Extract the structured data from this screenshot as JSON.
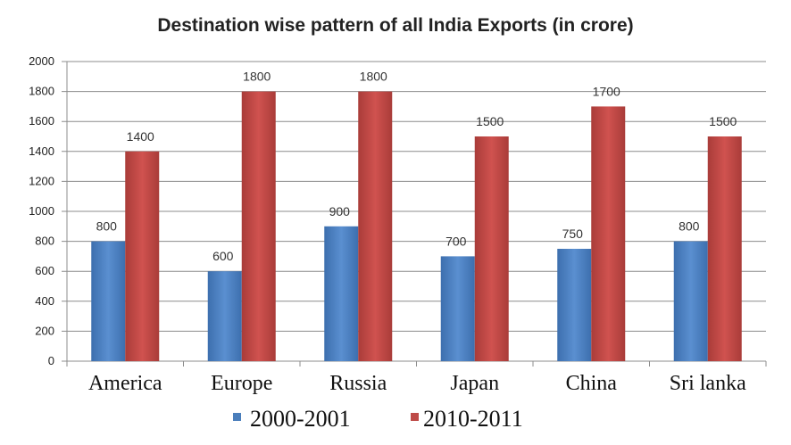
{
  "chart_data": {
    "type": "bar",
    "title": "Destination wise pattern of all India Exports (in crore)",
    "xlabel": "",
    "ylabel": "",
    "categories": [
      "America",
      "Europe",
      "Russia",
      "Japan",
      "China",
      "Sri lanka"
    ],
    "series": [
      {
        "name": "2000-2001",
        "values": [
          800,
          600,
          900,
          700,
          750,
          800
        ],
        "color": "#4a7ebb"
      },
      {
        "name": "2010-2011",
        "values": [
          1400,
          1800,
          1800,
          1500,
          1700,
          1500
        ],
        "color": "#be4b48"
      }
    ],
    "ylim": [
      0,
      2000
    ],
    "yticks": [
      0,
      200,
      400,
      600,
      800,
      1000,
      1200,
      1400,
      1600,
      1800,
      2000
    ],
    "grid": true,
    "legend": "bottom",
    "data_labels": true
  }
}
